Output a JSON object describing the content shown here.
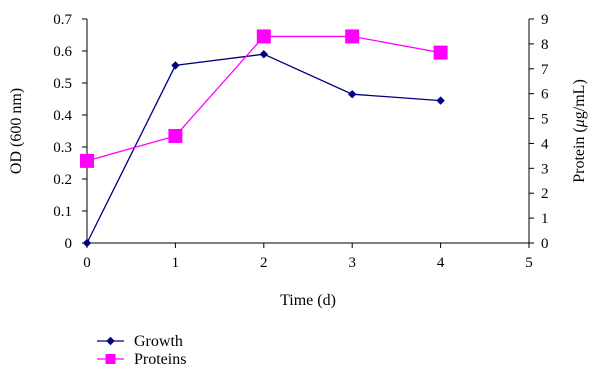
{
  "chart_data": {
    "type": "line",
    "xlabel": "Time (d)",
    "ylabel_left": "OD (600 nm)",
    "ylabel_right_prefix": "Protein (",
    "ylabel_right_mu": "μ",
    "ylabel_right_suffix": "g/mL)",
    "xlim": [
      0,
      5
    ],
    "ylim_left": [
      0,
      0.7
    ],
    "ylim_right": [
      0,
      9
    ],
    "x_ticks": [
      "0",
      "1",
      "2",
      "3",
      "4",
      "5"
    ],
    "y_left_ticks": [
      "0",
      "0.1",
      "0.2",
      "0.3",
      "0.4",
      "0.5",
      "0.6",
      "0.7"
    ],
    "y_right_ticks": [
      "0",
      "1",
      "2",
      "3",
      "4",
      "5",
      "6",
      "7",
      "8",
      "9"
    ],
    "grid": false,
    "legend_position": "bottom-left",
    "series": [
      {
        "name": "Growth",
        "axis": "left",
        "color": "#000080",
        "marker": "diamond",
        "x": [
          0,
          1,
          2,
          3,
          4
        ],
        "y": [
          0.0,
          0.555,
          0.59,
          0.465,
          0.445
        ]
      },
      {
        "name": "Proteins",
        "axis": "right",
        "color": "#ff00ff",
        "marker": "square",
        "x": [
          0,
          1,
          2,
          3,
          4
        ],
        "y": [
          3.3,
          4.3,
          8.3,
          8.3,
          7.65
        ]
      }
    ]
  }
}
